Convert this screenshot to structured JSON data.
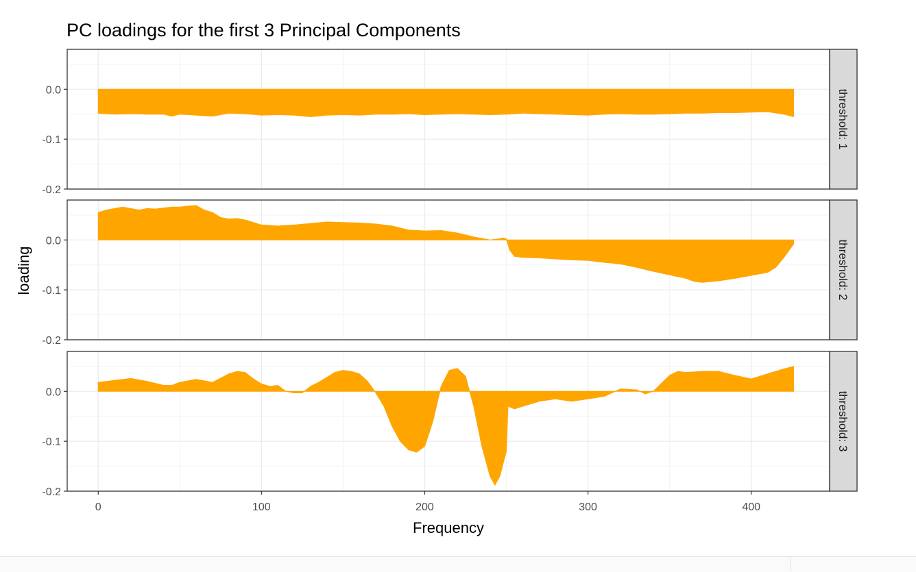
{
  "chart_data": {
    "type": "area",
    "title": "PC loadings for the first 3 Principal Components",
    "xlabel": "Frequency",
    "ylabel": "loading",
    "xlim": [
      -19,
      448
    ],
    "x_ticks": [
      0,
      100,
      200,
      300,
      400
    ],
    "y_ticks": [
      0.0,
      -0.1,
      -0.2
    ],
    "y_tick_labels": [
      "0.0",
      "-0.1",
      "-0.2"
    ],
    "ylim": [
      -0.2,
      0.08
    ],
    "grid": true,
    "fill_color": "#FFA500",
    "facets": [
      {
        "strip_label": "threshold: 1",
        "x": [
          0,
          10,
          20,
          30,
          40,
          45,
          50,
          60,
          70,
          80,
          90,
          100,
          110,
          120,
          130,
          140,
          150,
          160,
          170,
          180,
          190,
          200,
          210,
          220,
          230,
          240,
          250,
          260,
          270,
          280,
          290,
          300,
          310,
          320,
          330,
          340,
          350,
          360,
          370,
          380,
          390,
          400,
          410,
          420,
          426
        ],
        "y": [
          -0.048,
          -0.05,
          -0.049,
          -0.05,
          -0.05,
          -0.054,
          -0.05,
          -0.052,
          -0.054,
          -0.048,
          -0.049,
          -0.052,
          -0.051,
          -0.052,
          -0.055,
          -0.052,
          -0.051,
          -0.052,
          -0.05,
          -0.05,
          -0.049,
          -0.051,
          -0.05,
          -0.049,
          -0.05,
          -0.051,
          -0.05,
          -0.048,
          -0.049,
          -0.05,
          -0.051,
          -0.052,
          -0.05,
          -0.049,
          -0.05,
          -0.05,
          -0.049,
          -0.048,
          -0.048,
          -0.047,
          -0.047,
          -0.046,
          -0.045,
          -0.05,
          -0.055
        ]
      },
      {
        "strip_label": "threshold: 2",
        "x": [
          0,
          5,
          10,
          15,
          20,
          25,
          30,
          35,
          40,
          45,
          50,
          55,
          60,
          65,
          70,
          75,
          80,
          85,
          90,
          95,
          100,
          110,
          120,
          130,
          140,
          150,
          160,
          170,
          180,
          190,
          200,
          210,
          220,
          230,
          240,
          245,
          248,
          250,
          252,
          255,
          260,
          270,
          280,
          290,
          300,
          310,
          320,
          330,
          340,
          350,
          360,
          365,
          370,
          380,
          390,
          400,
          410,
          415,
          420,
          426
        ],
        "y": [
          0.055,
          0.06,
          0.063,
          0.066,
          0.063,
          0.06,
          0.063,
          0.062,
          0.064,
          0.066,
          0.066,
          0.068,
          0.069,
          0.06,
          0.055,
          0.045,
          0.042,
          0.043,
          0.04,
          0.035,
          0.03,
          0.028,
          0.03,
          0.033,
          0.036,
          0.035,
          0.034,
          0.032,
          0.028,
          0.02,
          0.018,
          0.019,
          0.014,
          0.006,
          0.0,
          0.002,
          0.004,
          0.002,
          -0.02,
          -0.033,
          -0.035,
          -0.036,
          -0.038,
          -0.04,
          -0.041,
          -0.045,
          -0.048,
          -0.055,
          -0.063,
          -0.07,
          -0.077,
          -0.083,
          -0.085,
          -0.082,
          -0.077,
          -0.071,
          -0.065,
          -0.055,
          -0.035,
          -0.008
        ]
      },
      {
        "strip_label": "threshold: 3",
        "x": [
          0,
          10,
          20,
          30,
          40,
          45,
          50,
          60,
          70,
          80,
          85,
          90,
          95,
          100,
          105,
          110,
          115,
          120,
          125,
          130,
          135,
          140,
          145,
          150,
          155,
          160,
          165,
          170,
          175,
          180,
          185,
          190,
          195,
          200,
          205,
          210,
          215,
          220,
          225,
          230,
          235,
          240,
          243,
          246,
          250,
          251,
          255,
          260,
          270,
          280,
          290,
          300,
          310,
          320,
          330,
          335,
          340,
          350,
          355,
          360,
          370,
          380,
          390,
          400,
          410,
          420,
          426
        ],
        "y": [
          0.018,
          0.022,
          0.026,
          0.02,
          0.012,
          0.012,
          0.018,
          0.024,
          0.018,
          0.035,
          0.04,
          0.038,
          0.025,
          0.015,
          0.01,
          0.012,
          0.0,
          -0.003,
          -0.003,
          0.01,
          0.018,
          0.028,
          0.038,
          0.042,
          0.04,
          0.035,
          0.02,
          -0.003,
          -0.03,
          -0.07,
          -0.1,
          -0.117,
          -0.122,
          -0.11,
          -0.06,
          0.01,
          0.042,
          0.046,
          0.03,
          -0.03,
          -0.11,
          -0.17,
          -0.188,
          -0.17,
          -0.12,
          -0.03,
          -0.035,
          -0.03,
          -0.02,
          -0.015,
          -0.02,
          -0.015,
          -0.01,
          0.005,
          0.003,
          -0.005,
          0.0,
          0.032,
          0.04,
          0.038,
          0.04,
          0.04,
          0.032,
          0.025,
          0.035,
          0.045,
          0.05
        ]
      }
    ]
  }
}
